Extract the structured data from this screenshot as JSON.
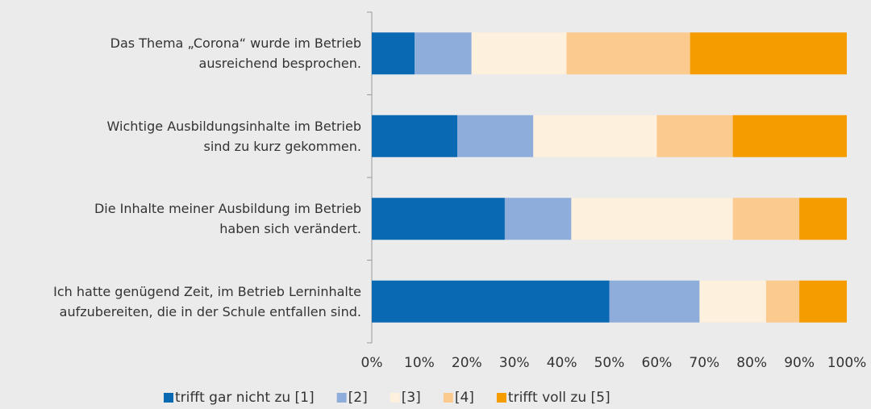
{
  "chart_data": {
    "type": "stacked_barh",
    "categories": [
      "Das Thema „Corona“ wurde im Betrieb\nausreichend besprochen.",
      "Wichtige Ausbildungsinhalte im Betrieb\nsind zu kurz gekommen.",
      "Die Inhalte meiner Ausbildung im Betrieb\nhaben sich verändert.",
      "Ich hatte genügend Zeit, im Betrieb Lerninhalte\naufzubereiten, die in der Schule entfallen sind."
    ],
    "series": [
      {
        "name": "trifft gar nicht zu [1]",
        "color": "#0a69b3",
        "values": [
          9,
          18,
          28,
          50
        ]
      },
      {
        "name": "[2]",
        "color": "#8eaddb",
        "values": [
          12,
          16,
          14,
          19
        ]
      },
      {
        "name": "[3]",
        "color": "#fdf0dd",
        "values": [
          20,
          26,
          34,
          14
        ]
      },
      {
        "name": "[4]",
        "color": "#fbca8f",
        "values": [
          26,
          16,
          14,
          7
        ]
      },
      {
        "name": "trifft voll zu [5]",
        "color": "#f59c00",
        "values": [
          33,
          24,
          10,
          10
        ]
      }
    ],
    "xlim": [
      0,
      100
    ],
    "xticks": [
      {
        "value": 0,
        "label": "0%"
      },
      {
        "value": 10,
        "label": "10%"
      },
      {
        "value": 20,
        "label": "20%"
      },
      {
        "value": 30,
        "label": "30%"
      },
      {
        "value": 40,
        "label": "40%"
      },
      {
        "value": 50,
        "label": "50%"
      },
      {
        "value": 60,
        "label": "60%"
      },
      {
        "value": 70,
        "label": "70%"
      },
      {
        "value": 80,
        "label": "80%"
      },
      {
        "value": 90,
        "label": "90%"
      },
      {
        "value": 100,
        "label": "100%"
      }
    ],
    "legend": "bottom"
  }
}
